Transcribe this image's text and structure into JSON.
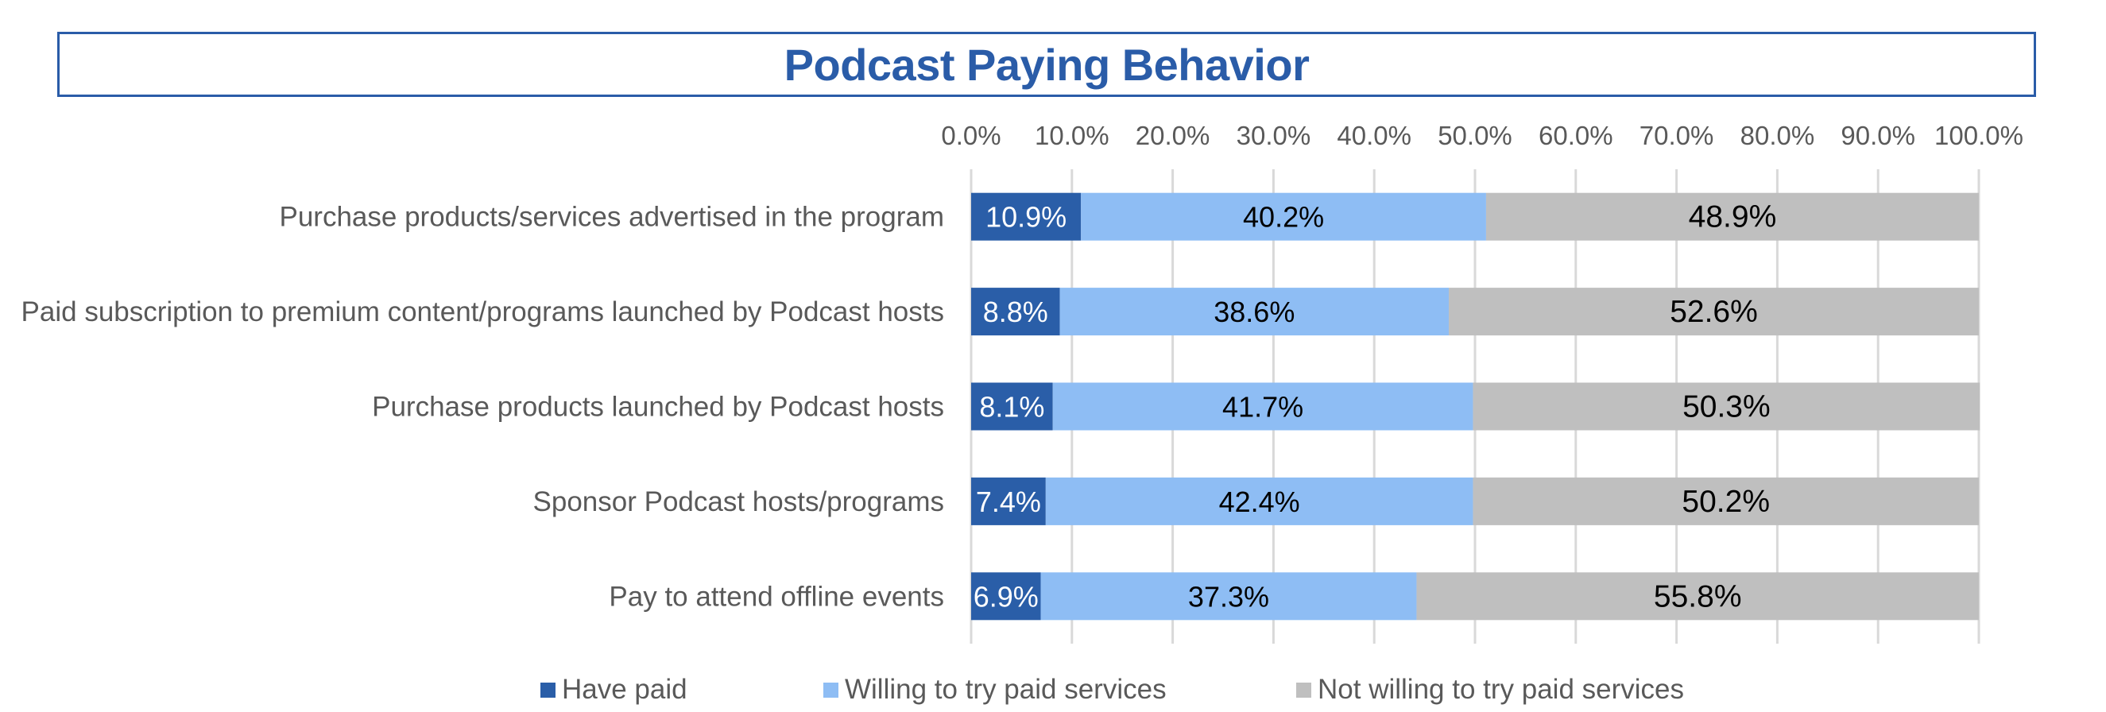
{
  "chart_data": {
    "type": "bar",
    "orientation": "horizontal",
    "stacked": true,
    "title": "Podcast Paying Behavior",
    "xlabel": "",
    "ylabel": "",
    "xlim": [
      0,
      100
    ],
    "x_ticks": [
      "0.0%",
      "10.0%",
      "20.0%",
      "30.0%",
      "40.0%",
      "50.0%",
      "60.0%",
      "70.0%",
      "80.0%",
      "90.0%",
      "100.0%"
    ],
    "x_axis_position": "top",
    "grid": true,
    "legend_position": "bottom",
    "categories": [
      "Purchase products/services advertised in the program",
      "Paid subscription to premium content/programs launched by Podcast hosts",
      "Purchase products launched by Podcast hosts",
      "Sponsor Podcast hosts/programs",
      "Pay to attend offline events"
    ],
    "series": [
      {
        "name": "Have paid",
        "color": "#2a5ea8",
        "label_color": "#ffffff",
        "values": [
          10.9,
          8.8,
          8.1,
          7.4,
          6.9
        ],
        "labels": [
          "10.9%",
          "8.8%",
          "8.1%",
          "7.4%",
          "6.9%"
        ]
      },
      {
        "name": "Willing to try paid services",
        "color": "#8ebdf4",
        "label_color": "#000000",
        "values": [
          40.2,
          38.6,
          41.7,
          42.4,
          37.3
        ],
        "labels": [
          "40.2%",
          "38.6%",
          "41.7%",
          "42.4%",
          "37.3%"
        ]
      },
      {
        "name": "Not willing to try paid services",
        "color": "#bfbfbf",
        "label_color": "#000000",
        "values": [
          48.9,
          52.6,
          50.3,
          50.2,
          55.8
        ],
        "labels": [
          "48.9%",
          "52.6%",
          "50.3%",
          "50.2%",
          "55.8%"
        ]
      }
    ]
  }
}
